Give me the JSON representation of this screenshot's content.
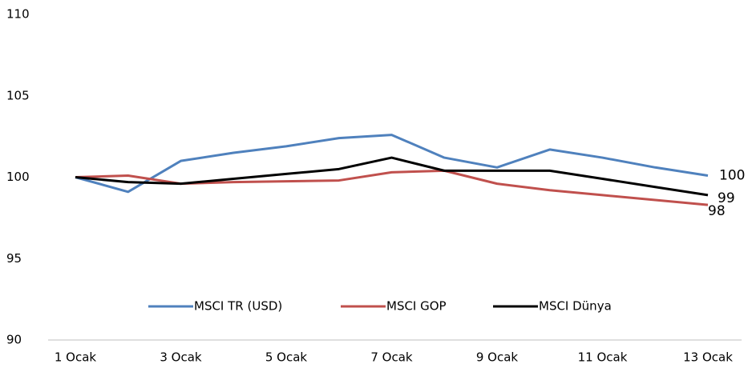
{
  "chart_data": {
    "type": "line",
    "categories": [
      "1 Ocak",
      null,
      "3 Ocak",
      null,
      "5 Ocak",
      null,
      "7 Ocak",
      null,
      "9 Ocak",
      null,
      "11 Ocak",
      null,
      "13 Ocak"
    ],
    "series": [
      {
        "name": "MSCI TR (USD)",
        "color": "#4f81bd",
        "values": [
          100,
          99.1,
          101,
          101.5,
          101.9,
          102.4,
          102.6,
          101.2,
          100.6,
          101.7,
          101.2,
          100.6,
          100.1
        ],
        "value_labels": [
          null,
          null,
          null,
          null,
          null,
          null,
          null,
          null,
          null,
          null,
          null,
          null,
          "100"
        ]
      },
      {
        "name": "MSCI GOP",
        "color": "#c0504d",
        "values": [
          100,
          100.1,
          99.6,
          99.7,
          99.75,
          99.8,
          100.3,
          100.4,
          99.6,
          99.2,
          98.9,
          98.6,
          98.3
        ],
        "value_labels": [
          null,
          null,
          null,
          null,
          null,
          null,
          null,
          null,
          null,
          null,
          null,
          null,
          "98"
        ]
      },
      {
        "name": "MSCI Dünya",
        "color": "#000000",
        "values": [
          100,
          99.7,
          99.6,
          99.9,
          100.2,
          100.5,
          101.2,
          100.4,
          100.4,
          100.4,
          99.9,
          99.4,
          98.9
        ],
        "value_labels": [
          null,
          null,
          null,
          null,
          null,
          null,
          null,
          null,
          null,
          null,
          null,
          null,
          "99"
        ]
      }
    ],
    "ylim": [
      90,
      110
    ],
    "yticks": [
      90,
      95,
      100,
      105,
      110
    ],
    "grid": false,
    "legend": "bottom"
  }
}
